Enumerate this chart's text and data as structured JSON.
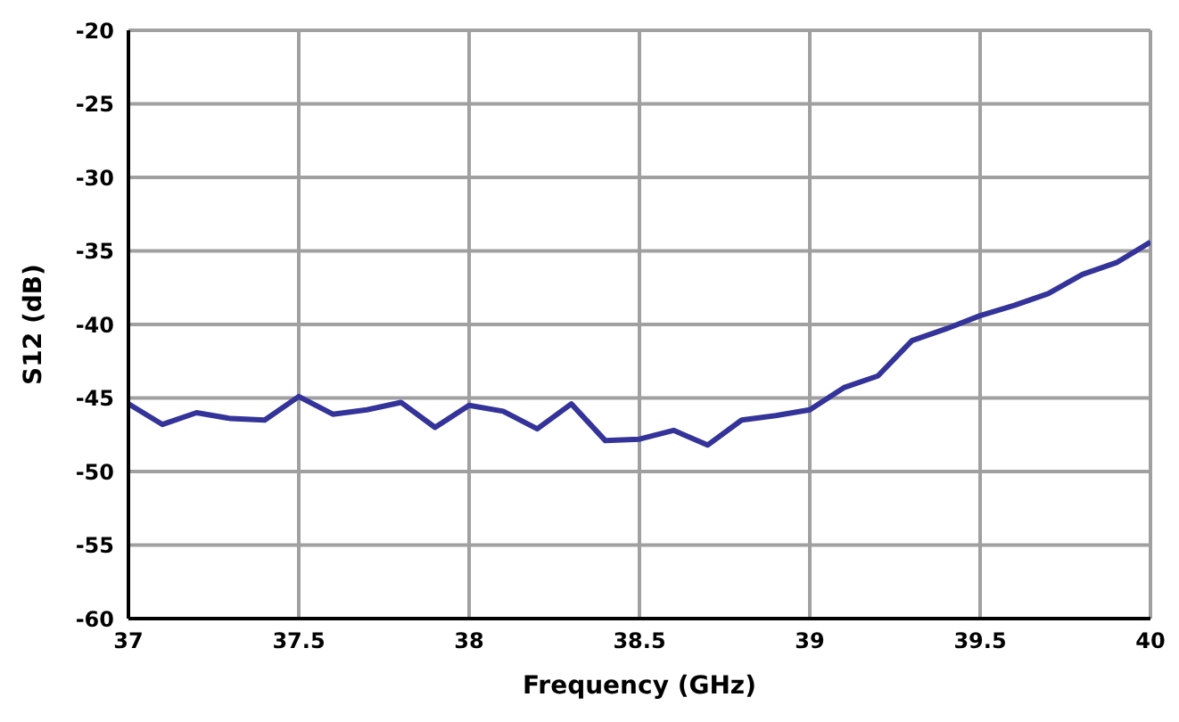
{
  "chart_data": {
    "type": "line",
    "xlabel": "Frequency (GHz)",
    "ylabel": "S12 (dB)",
    "x": [
      37,
      37.1,
      37.2,
      37.3,
      37.4,
      37.5,
      37.6,
      37.7,
      37.8,
      37.9,
      38,
      38.1,
      38.2,
      38.3,
      38.4,
      38.5,
      38.6,
      38.7,
      38.8,
      38.9,
      39,
      39.1,
      39.2,
      39.3,
      39.4,
      39.5,
      39.6,
      39.7,
      39.8,
      39.9,
      40
    ],
    "series": [
      {
        "color": "#333399",
        "values": [
          -45.4,
          -46.8,
          -46.0,
          -46.4,
          -46.5,
          -44.9,
          -46.1,
          -45.8,
          -45.3,
          -47.0,
          -45.5,
          -45.9,
          -47.1,
          -45.4,
          -47.9,
          -47.8,
          -47.2,
          -48.2,
          -46.5,
          -46.2,
          -45.8,
          -44.3,
          -43.5,
          -41.1,
          -40.3,
          -39.4,
          -38.7,
          -37.9,
          -36.6,
          -35.8,
          -34.4
        ]
      }
    ],
    "xlim": [
      37,
      40
    ],
    "xticks": [
      37,
      37.5,
      38,
      38.5,
      39,
      39.5,
      40
    ],
    "ylim": [
      -60,
      -20
    ],
    "yticks": [
      -60,
      -55,
      -50,
      -45,
      -40,
      -35,
      -30,
      -25,
      -20
    ],
    "grid": true,
    "marker": "none",
    "line_style": "solid"
  }
}
